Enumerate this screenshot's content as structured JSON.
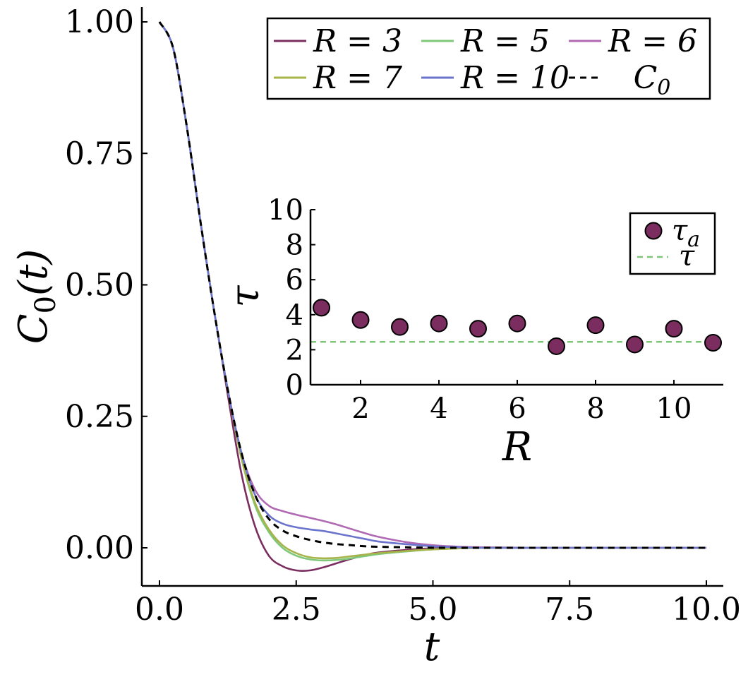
{
  "chart_data": [
    {
      "type": "line",
      "title": "",
      "xlabel": "t",
      "ylabel": "C_0(t)",
      "xlim": [
        0,
        10
      ],
      "ylim": [
        -0.07,
        1.03
      ],
      "xticks": [
        0.0,
        2.5,
        5.0,
        7.5,
        10.0
      ],
      "xtick_labels": [
        "0.0",
        "2.5",
        "5.0",
        "7.5",
        "10.0"
      ],
      "yticks": [
        0.0,
        0.25,
        0.5,
        0.75,
        1.0
      ],
      "ytick_labels": [
        "0.00",
        "0.25",
        "0.50",
        "0.75",
        "1.00"
      ],
      "legend_location": "top-right",
      "x": [
        0,
        0.25,
        0.5,
        0.75,
        1.0,
        1.25,
        1.5,
        1.75,
        2.0,
        2.25,
        2.5,
        2.75,
        3.0,
        3.25,
        3.5,
        3.75,
        4.0,
        4.5,
        5.0,
        5.5,
        6.0,
        7.0,
        8.0,
        9.0,
        10.0
      ],
      "series": [
        {
          "name": "R = 3",
          "color": "#7b2d5f",
          "dash": "solid",
          "values": [
            1.0,
            0.95,
            0.8,
            0.62,
            0.45,
            0.29,
            0.14,
            0.04,
            -0.015,
            -0.035,
            -0.043,
            -0.043,
            -0.037,
            -0.029,
            -0.021,
            -0.014,
            -0.009,
            -0.004,
            -0.001,
            0.0,
            0.0,
            0.0,
            0.0,
            0.0,
            0.0
          ]
        },
        {
          "name": "R = 5",
          "color": "#7fc87a",
          "dash": "solid",
          "values": [
            1.0,
            0.95,
            0.8,
            0.62,
            0.45,
            0.3,
            0.17,
            0.08,
            0.03,
            0.0,
            -0.015,
            -0.022,
            -0.024,
            -0.023,
            -0.02,
            -0.016,
            -0.012,
            -0.007,
            -0.003,
            -0.001,
            0.0,
            0.0,
            0.0,
            0.0,
            0.0
          ]
        },
        {
          "name": "R = 6",
          "color": "#b06ab3",
          "dash": "solid",
          "values": [
            1.0,
            0.95,
            0.8,
            0.62,
            0.45,
            0.3,
            0.18,
            0.11,
            0.08,
            0.07,
            0.063,
            0.057,
            0.051,
            0.044,
            0.036,
            0.028,
            0.021,
            0.011,
            0.005,
            0.002,
            0.001,
            0.0,
            0.0,
            0.0,
            0.0
          ]
        },
        {
          "name": "R = 7",
          "color": "#a7b44a",
          "dash": "solid",
          "values": [
            1.0,
            0.95,
            0.8,
            0.62,
            0.45,
            0.3,
            0.17,
            0.085,
            0.035,
            0.005,
            -0.01,
            -0.018,
            -0.02,
            -0.019,
            -0.016,
            -0.013,
            -0.01,
            -0.006,
            -0.003,
            -0.001,
            0.0,
            0.0,
            0.0,
            0.0,
            0.0
          ]
        },
        {
          "name": "R = 10",
          "color": "#6b74cc",
          "dash": "solid",
          "values": [
            1.0,
            0.95,
            0.8,
            0.62,
            0.45,
            0.3,
            0.18,
            0.1,
            0.062,
            0.046,
            0.039,
            0.035,
            0.032,
            0.027,
            0.022,
            0.017,
            0.012,
            0.007,
            0.003,
            0.001,
            0.0,
            0.0,
            0.0,
            0.0,
            0.0
          ]
        },
        {
          "name": "C_0",
          "color": "#000000",
          "dash": "dashed",
          "values": [
            1.0,
            0.95,
            0.8,
            0.62,
            0.45,
            0.3,
            0.18,
            0.1,
            0.055,
            0.033,
            0.022,
            0.015,
            0.01,
            0.007,
            0.005,
            0.003,
            0.002,
            0.001,
            0.0,
            0.0,
            0.0,
            0.0,
            0.0,
            0.0,
            0.0
          ]
        }
      ]
    },
    {
      "type": "scatter",
      "title": "",
      "xlabel": "R",
      "ylabel": "τ",
      "xlim": [
        0.8,
        11.3
      ],
      "ylim": [
        0,
        10
      ],
      "xticks": [
        2,
        4,
        6,
        8,
        10
      ],
      "xtick_labels": [
        "2",
        "4",
        "6",
        "8",
        "10"
      ],
      "yticks": [
        0,
        2,
        4,
        6,
        8,
        10
      ],
      "ytick_labels": [
        "0",
        "2",
        "4",
        "6",
        "8",
        "10"
      ],
      "legend_location": "top-right",
      "series": [
        {
          "name": "τ_a",
          "color": "#7b2d5f",
          "marker": "circle",
          "x": [
            1,
            2,
            3,
            4,
            5,
            6,
            7,
            8,
            9,
            10,
            11
          ],
          "values": [
            4.4,
            3.7,
            3.3,
            3.5,
            3.2,
            3.5,
            2.2,
            3.4,
            2.3,
            3.2,
            2.4
          ]
        },
        {
          "name": "τ",
          "color": "#7fc87a",
          "dash": "dashed",
          "value": 2.45
        }
      ]
    }
  ]
}
